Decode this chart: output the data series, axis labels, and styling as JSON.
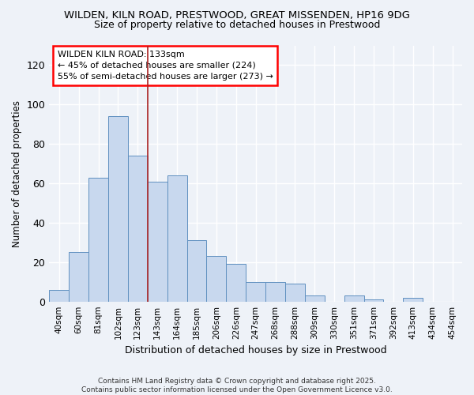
{
  "title1": "WILDEN, KILN ROAD, PRESTWOOD, GREAT MISSENDEN, HP16 9DG",
  "title2": "Size of property relative to detached houses in Prestwood",
  "xlabel": "Distribution of detached houses by size in Prestwood",
  "ylabel": "Number of detached properties",
  "bar_color": "#c8d8ee",
  "bar_edge_color": "#6090c0",
  "categories": [
    "40sqm",
    "60sqm",
    "81sqm",
    "102sqm",
    "123sqm",
    "143sqm",
    "164sqm",
    "185sqm",
    "206sqm",
    "226sqm",
    "247sqm",
    "268sqm",
    "288sqm",
    "309sqm",
    "330sqm",
    "351sqm",
    "371sqm",
    "392sqm",
    "413sqm",
    "434sqm",
    "454sqm"
  ],
  "values": [
    6,
    25,
    63,
    94,
    74,
    61,
    64,
    31,
    23,
    19,
    10,
    10,
    9,
    3,
    0,
    3,
    1,
    0,
    2,
    0,
    0
  ],
  "ylim": [
    0,
    130
  ],
  "yticks": [
    0,
    20,
    40,
    60,
    80,
    100,
    120
  ],
  "annotation_line1": "WILDEN KILN ROAD: 133sqm",
  "annotation_line2": "← 45% of detached houses are smaller (224)",
  "annotation_line3": "55% of semi-detached houses are larger (273) →",
  "vline_x": 4.5,
  "vline_color": "#aa2222",
  "bg_color": "#eef2f8",
  "footer1": "Contains HM Land Registry data © Crown copyright and database right 2025.",
  "footer2": "Contains public sector information licensed under the Open Government Licence v3.0."
}
